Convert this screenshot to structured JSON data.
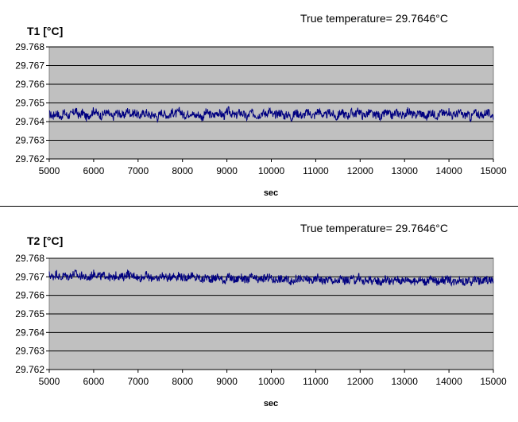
{
  "chart_data": [
    {
      "type": "line",
      "title": "",
      "ylabel": "T1 [°C]",
      "xlabel": "sec",
      "annotation": "True temperature= 29.7646°C",
      "xlim": [
        5000,
        15000
      ],
      "ylim": [
        29.762,
        29.768
      ],
      "xticks": [
        "5000",
        "6000",
        "7000",
        "8000",
        "9000",
        "10000",
        "11000",
        "12000",
        "13000",
        "14000",
        "15000"
      ],
      "yticks": [
        "29.762",
        "29.763",
        "29.764",
        "29.765",
        "29.766",
        "29.767",
        "29.768"
      ],
      "grid": "horizontal",
      "background": "#c0c0c0",
      "line_color": "#000080",
      "series": [
        {
          "x_start": 5000,
          "x_end": 15000,
          "values": [
            29.7644,
            29.7643,
            29.7645,
            29.7642,
            29.7645,
            29.7643,
            29.7644,
            29.7646,
            29.7643,
            29.7645,
            29.7642,
            29.7644,
            29.7646,
            29.7644,
            29.7643,
            29.7645,
            29.7644,
            29.7642,
            29.7645,
            29.7644,
            29.7643,
            29.7646,
            29.7644,
            29.7645,
            29.7643,
            29.7644,
            29.7645,
            29.7643,
            29.7644,
            29.7642,
            29.7645,
            29.7644,
            29.7643,
            29.7645,
            29.7644,
            29.7646,
            29.7643,
            29.7644,
            29.7645,
            29.7643,
            29.7644,
            29.7642,
            29.7645,
            29.7644,
            29.7643,
            29.7645,
            29.7644,
            29.7643,
            29.7646,
            29.7644,
            29.7643,
            29.7645,
            29.7644,
            29.7642,
            29.7645,
            29.7644,
            29.7643,
            29.7645,
            29.7644,
            29.7646,
            29.7643,
            29.7644,
            29.7645,
            29.7643,
            29.7644,
            29.7642,
            29.7645,
            29.7644,
            29.7643,
            29.7645,
            29.7644,
            29.7643,
            29.7646,
            29.7644,
            29.7643,
            29.7645,
            29.7644,
            29.7642,
            29.7645,
            29.7644,
            29.7643,
            29.7645,
            29.7644,
            29.7646,
            29.7643,
            29.7644,
            29.7645,
            29.7643,
            29.7644,
            29.7642,
            29.7645,
            29.7644,
            29.7643,
            29.7645,
            29.7644,
            29.7643,
            29.7646,
            29.7644,
            29.7643,
            29.7645,
            29.7644,
            29.7642,
            29.7645,
            29.7644,
            29.7643,
            29.7645,
            29.7644,
            29.7646,
            29.7643,
            29.7644,
            29.7645,
            29.7643,
            29.7644,
            29.7642,
            29.7645,
            29.7644,
            29.7643,
            29.7645,
            29.7644,
            29.7643
          ]
        }
      ]
    },
    {
      "type": "line",
      "title": "",
      "ylabel": "T2 [°C]",
      "xlabel": "sec",
      "annotation": "True temperature= 29.7646°C",
      "xlim": [
        5000,
        15000
      ],
      "ylim": [
        29.762,
        29.768
      ],
      "xticks": [
        "5000",
        "6000",
        "7000",
        "8000",
        "9000",
        "10000",
        "11000",
        "12000",
        "13000",
        "14000",
        "15000"
      ],
      "yticks": [
        "29.762",
        "29.763",
        "29.764",
        "29.765",
        "29.766",
        "29.767",
        "29.768"
      ],
      "grid": "horizontal",
      "background": "#c0c0c0",
      "line_color": "#000080",
      "series": [
        {
          "x_start": 5000,
          "x_end": 15000,
          "values": [
            29.7671,
            29.767,
            29.7672,
            29.7669,
            29.7671,
            29.767,
            29.7671,
            29.7672,
            29.767,
            29.7671,
            29.7669,
            29.767,
            29.7672,
            29.7671,
            29.767,
            29.7671,
            29.767,
            29.7669,
            29.7671,
            29.767,
            29.767,
            29.7672,
            29.767,
            29.7671,
            29.7669,
            29.767,
            29.7671,
            29.7669,
            29.767,
            29.7668,
            29.7671,
            29.767,
            29.7669,
            29.7671,
            29.767,
            29.7671,
            29.7669,
            29.767,
            29.7671,
            29.7669,
            29.767,
            29.7668,
            29.767,
            29.7669,
            29.7669,
            29.767,
            29.7669,
            29.7668,
            29.767,
            29.7669,
            29.7668,
            29.767,
            29.7669,
            29.7668,
            29.767,
            29.7669,
            29.7668,
            29.7669,
            29.7669,
            29.767,
            29.7668,
            29.7669,
            29.7669,
            29.7668,
            29.7669,
            29.7667,
            29.7669,
            29.7669,
            29.7668,
            29.7669,
            29.7668,
            29.7668,
            29.767,
            29.7668,
            29.7668,
            29.7669,
            29.7668,
            29.7667,
            29.7669,
            29.7668,
            29.7668,
            29.7669,
            29.7668,
            29.767,
            29.7667,
            29.7668,
            29.7669,
            29.7667,
            29.7668,
            29.7667,
            29.7669,
            29.7668,
            29.7667,
            29.7669,
            29.7668,
            29.7668,
            29.7669,
            29.7668,
            29.7667,
            29.7669,
            29.7668,
            29.7667,
            29.7669,
            29.7668,
            29.7667,
            29.7669,
            29.7668,
            29.7669,
            29.7667,
            29.7668,
            29.7669,
            29.7667,
            29.7668,
            29.7667,
            29.7669,
            29.7668,
            29.7667,
            29.7669,
            29.7668,
            29.7668
          ]
        }
      ]
    }
  ]
}
